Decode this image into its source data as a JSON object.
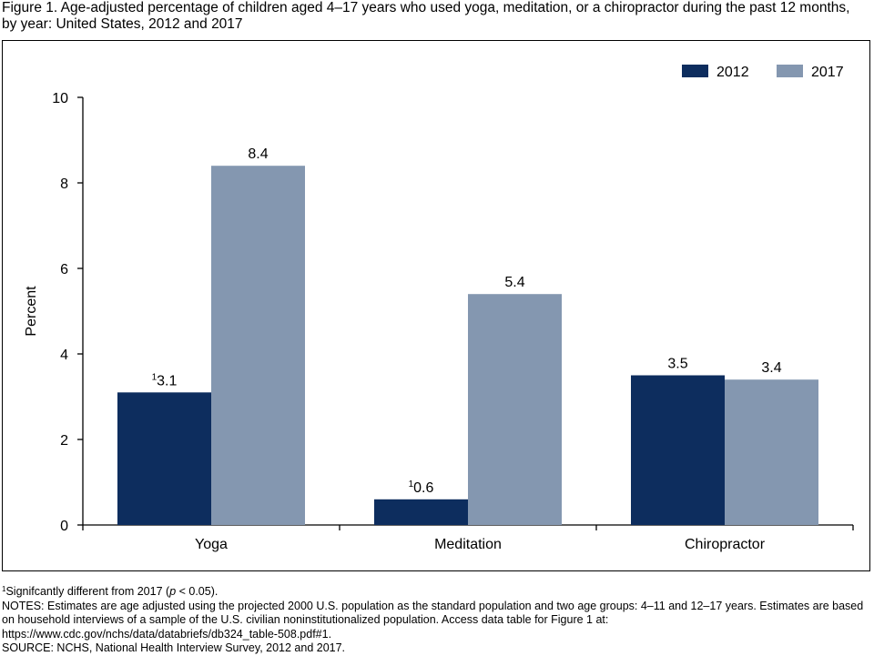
{
  "figure": {
    "title": "Figure 1. Age-adjusted percentage of children aged 4–17 years who used yoga, meditation, or a chiropractor during the past 12 months, by year: United States, 2012 and 2017"
  },
  "colors": {
    "2012": "#0d2d5e",
    "2017": "#8497b0",
    "axis": "#000000"
  },
  "chart_data": {
    "type": "bar",
    "categories": [
      "Yoga",
      "Meditation",
      "Chiropractor"
    ],
    "series": [
      {
        "name": "2012",
        "values": [
          3.1,
          0.6,
          3.5
        ],
        "labels": [
          "3.1",
          "0.6",
          "3.5"
        ],
        "footnote_marks": [
          "1",
          "1",
          ""
        ]
      },
      {
        "name": "2017",
        "values": [
          8.4,
          5.4,
          3.4
        ],
        "labels": [
          "8.4",
          "5.4",
          "3.4"
        ],
        "footnote_marks": [
          "",
          "",
          ""
        ]
      }
    ],
    "title": "",
    "xlabel": "",
    "ylabel": "Percent",
    "ylim": [
      0,
      10
    ],
    "yticks": [
      0,
      2,
      4,
      6,
      8,
      10
    ],
    "grid": false,
    "legend_position": "top-right"
  },
  "footnotes": {
    "significance_mark": "1",
    "significance_text_before": "Signifcantly different from 2017 (",
    "significance_p": "p",
    "significance_text_after": " < 0.05).",
    "notes": "NOTES: Estimates are age adjusted using the projected 2000 U.S. population as the standard population and two age groups: 4–11 and 12–17 years. Estimates are based on household interviews of a sample of the U.S. civilian noninstitutionalized population. Access data table for Figure 1 at: https://www.cdc.gov/nchs/data/databriefs/db324_table-508.pdf#1.",
    "source": "SOURCE: NCHS, National Health Interview Survey, 2012 and 2017."
  }
}
